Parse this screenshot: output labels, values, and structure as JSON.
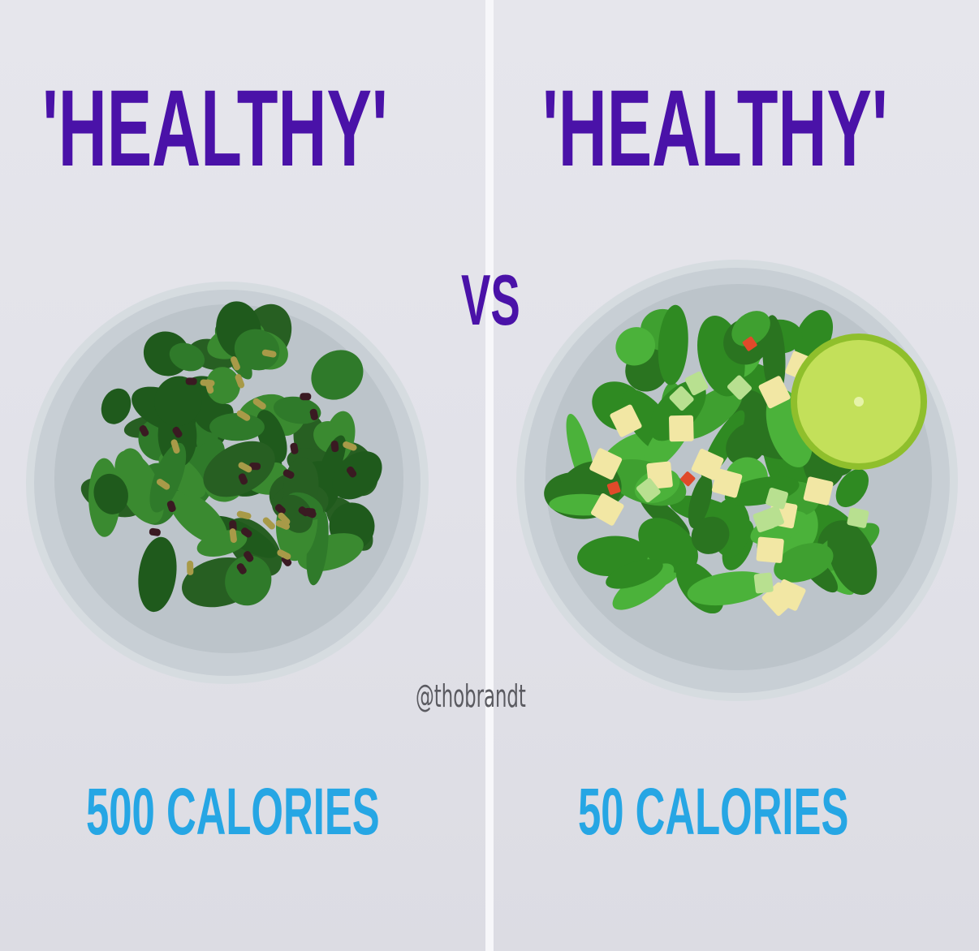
{
  "left": {
    "title": "'HEALTHY'",
    "calories": "500 CALORIES"
  },
  "right": {
    "title": "'HEALTHY'",
    "calories": "50 CALORIES"
  },
  "vs": "VS",
  "watermark": "@thobrandt",
  "colors": {
    "title": "#4a12a8",
    "calories": "#26a6e4",
    "background": "#e4e4ea",
    "bowl": "#c9d0d6",
    "spinach": "#2f7a2a",
    "lime": "#b5d94a"
  }
}
